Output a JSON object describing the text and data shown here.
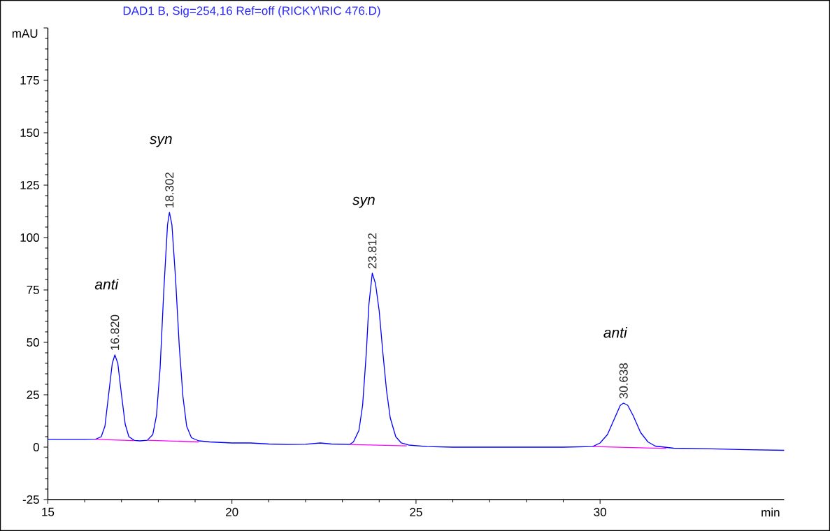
{
  "chart_data": {
    "type": "line",
    "title": "DAD1 B, Sig=254,16 Ref=off (RICKY\\RIC 476.D)",
    "xlabel": "min",
    "ylabel": "mAU",
    "xlim": [
      15,
      35
    ],
    "xticks": [
      15,
      20,
      25,
      30
    ],
    "ylim": [
      -25,
      200
    ],
    "yticks": [
      -25,
      0,
      25,
      50,
      75,
      100,
      125,
      150,
      175,
      {
        "value": 200,
        "label": null
      }
    ],
    "series": [
      {
        "color": "#0000ff",
        "x": [
          15,
          15.5,
          16,
          16.3,
          16.45,
          16.55,
          16.65,
          16.75,
          16.82,
          16.9,
          17.0,
          17.1,
          17.2,
          17.35,
          17.5,
          17.7,
          17.85,
          17.95,
          18.05,
          18.15,
          18.25,
          18.302,
          18.37,
          18.47,
          18.57,
          18.67,
          18.77,
          18.9,
          19.1,
          19.4,
          20,
          20.5,
          21,
          21.5,
          22,
          22.4,
          22.7,
          23.2,
          23.3,
          23.45,
          23.55,
          23.65,
          23.72,
          23.812,
          23.9,
          24.0,
          24.1,
          24.2,
          24.3,
          24.45,
          24.6,
          24.8,
          25.3,
          26,
          27,
          28,
          29,
          29.8,
          30.0,
          30.2,
          30.4,
          30.55,
          30.638,
          30.75,
          30.9,
          31.1,
          31.3,
          31.5,
          32,
          33,
          34,
          35
        ],
        "values": [
          3.7,
          3.7,
          3.7,
          3.8,
          5,
          10,
          25,
          40,
          44,
          40,
          25,
          11,
          5,
          3.2,
          3.0,
          3.3,
          6,
          15,
          38,
          75,
          106,
          112,
          106,
          80,
          48,
          24,
          10,
          4.5,
          3,
          2.5,
          2,
          2,
          1.5,
          1.3,
          1.4,
          2,
          1.5,
          1.3,
          2.5,
          8,
          20,
          45,
          68,
          83,
          78,
          65,
          45,
          27,
          14,
          5,
          2,
          1,
          0.3,
          0,
          0,
          0,
          0,
          0.3,
          2,
          6,
          14,
          20,
          21,
          20,
          15,
          7,
          2.5,
          0.5,
          -0.5,
          -0.8,
          -1.2,
          -1.5
        ]
      },
      {
        "color": "#ff00ff",
        "x": [
          16.3,
          17.35
        ],
        "values": [
          3.7,
          3.1
        ]
      },
      {
        "color": "#ff00ff",
        "x": [
          17.7,
          19.1
        ],
        "values": [
          3.3,
          2.5
        ]
      },
      {
        "color": "#ff00ff",
        "x": [
          23.2,
          24.75
        ],
        "values": [
          1.3,
          0.6
        ]
      },
      {
        "color": "#ff00ff",
        "x": [
          29.8,
          31.8
        ],
        "values": [
          0.3,
          -0.6
        ]
      }
    ],
    "annotations": [
      {
        "text": "16.820",
        "x": 16.82,
        "y": 44
      },
      "anti",
      {
        "text": "18.302",
        "x": 18.302,
        "y": 112
      },
      "syn",
      {
        "text": "23.812",
        "x": 23.812,
        "y": 83
      },
      "syn",
      {
        "text": "30.638",
        "x": 30.638,
        "y": 21
      },
      "anti"
    ]
  }
}
